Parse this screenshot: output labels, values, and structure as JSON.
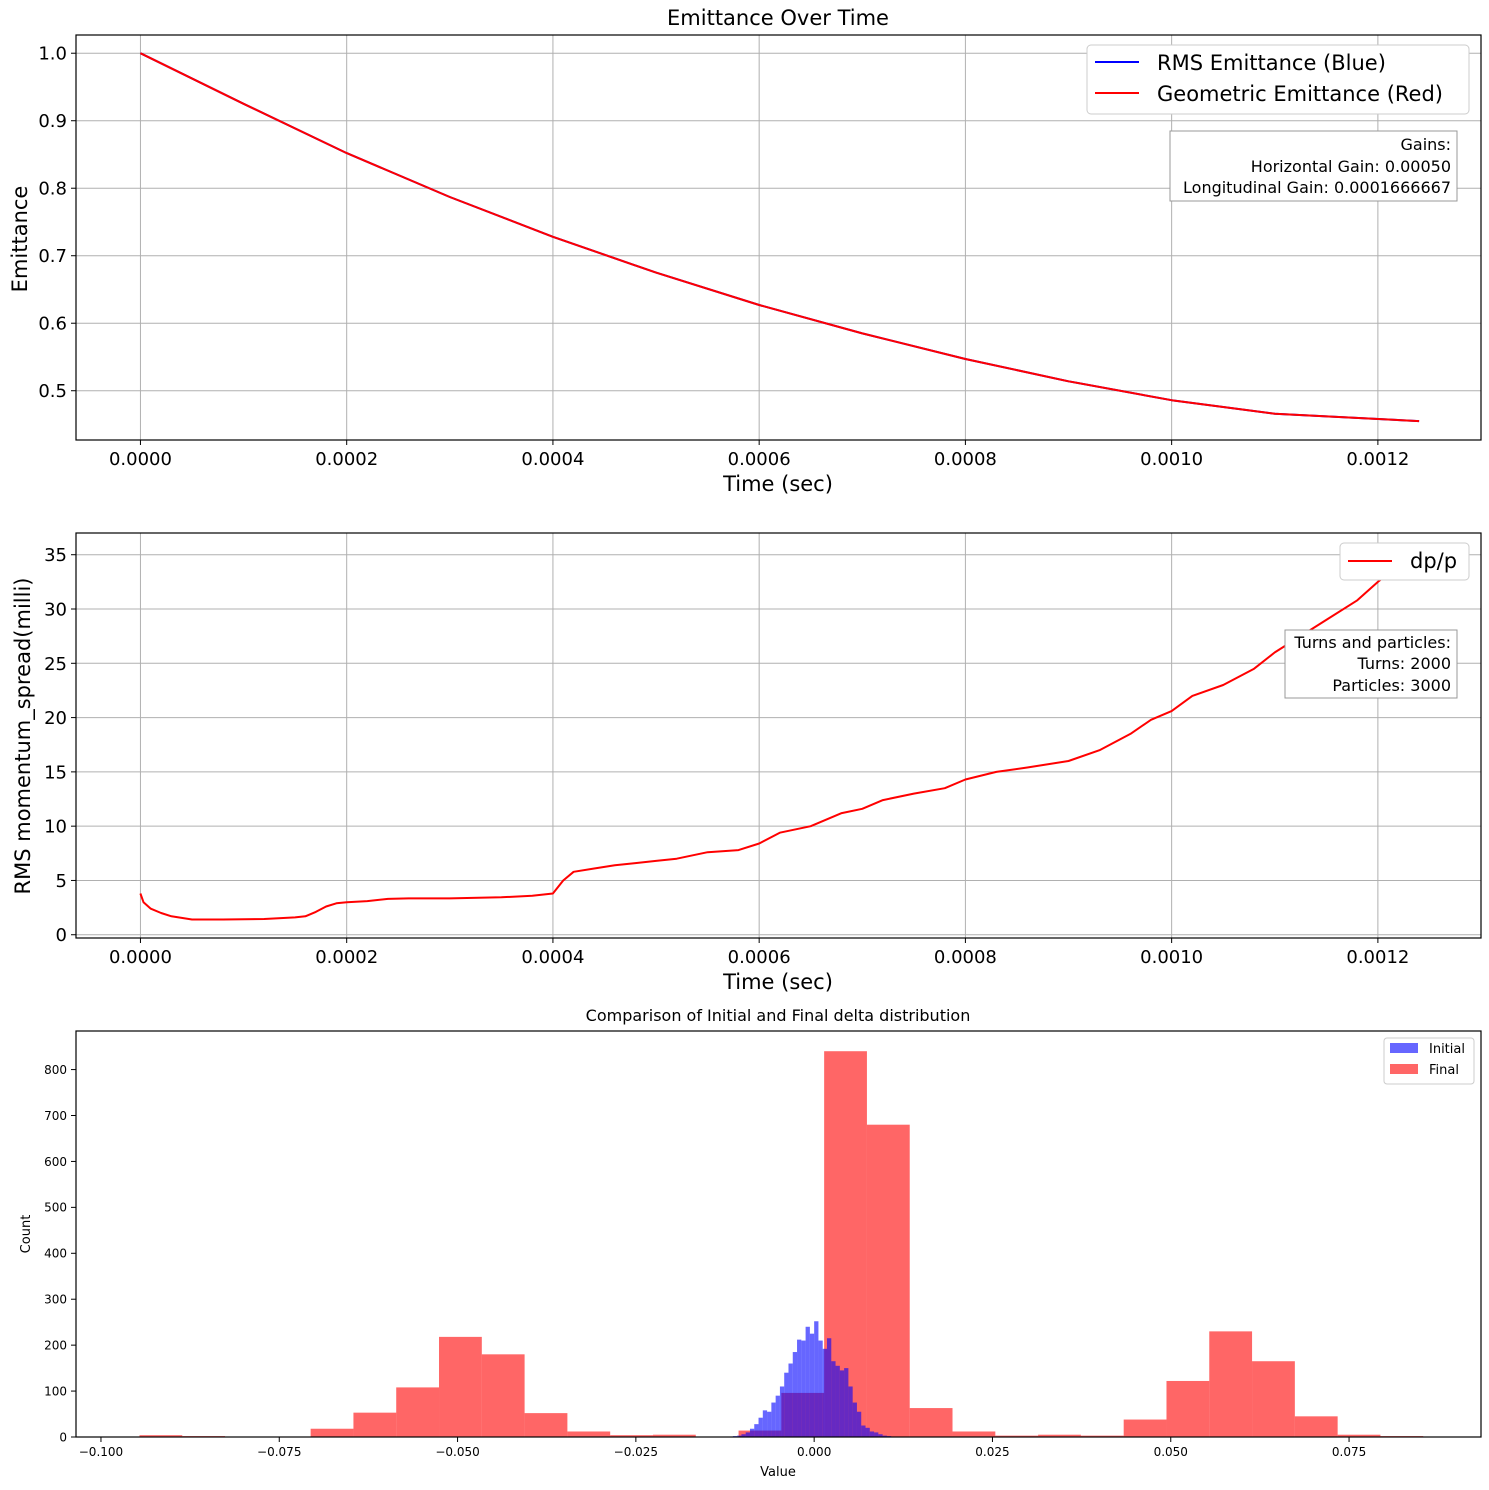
{
  "chart_data": [
    {
      "type": "line",
      "title": "Emittance Over Time",
      "xlabel": "Time (sec)",
      "ylabel": "Emittance",
      "xlim": [
        -6.25e-05,
        0.0013
      ],
      "ylim": [
        0.427,
        1.027
      ],
      "x_ticks": [
        "0.0000",
        "0.0002",
        "0.0004",
        "0.0006",
        "0.0008",
        "0.0010",
        "0.0012"
      ],
      "x_tick_values": [
        0,
        0.0002,
        0.0004,
        0.0006,
        0.0008,
        0.001,
        0.0012
      ],
      "y_ticks": [
        "0.5",
        "0.6",
        "0.7",
        "0.8",
        "0.9",
        "1.0"
      ],
      "y_tick_values": [
        0.5,
        0.6,
        0.7,
        0.8,
        0.9,
        1.0
      ],
      "grid": true,
      "legend": "top-right",
      "series": [
        {
          "name": "RMS Emittance (Blue)",
          "color": "#0000ff",
          "x": [
            0,
            0.0001,
            0.0002,
            0.0003,
            0.0004,
            0.0005,
            0.0006,
            0.0007,
            0.0008,
            0.0009,
            0.001,
            0.0011,
            0.00124
          ],
          "y": [
            1.0,
            0.925,
            0.852,
            0.787,
            0.728,
            0.675,
            0.627,
            0.585,
            0.547,
            0.514,
            0.486,
            0.466,
            0.455
          ]
        },
        {
          "name": "Geometric Emittance (Red)",
          "color": "#ff0000",
          "x": [
            0,
            0.0001,
            0.0002,
            0.0003,
            0.0004,
            0.0005,
            0.0006,
            0.0007,
            0.0008,
            0.0009,
            0.001,
            0.0011,
            0.00124
          ],
          "y": [
            1.0,
            0.925,
            0.852,
            0.787,
            0.728,
            0.675,
            0.627,
            0.585,
            0.547,
            0.514,
            0.486,
            0.466,
            0.455
          ]
        }
      ],
      "annotation": [
        "Gains:",
        "Horizontal Gain: 0.00050",
        "Longitudinal Gain: 0.0001666667"
      ]
    },
    {
      "type": "line",
      "xlabel": "Time (sec)",
      "ylabel": "RMS momentum_spread(milli)",
      "xlim": [
        -6.25e-05,
        0.0013
      ],
      "ylim": [
        -0.3,
        37
      ],
      "x_ticks": [
        "0.0000",
        "0.0002",
        "0.0004",
        "0.0006",
        "0.0008",
        "0.0010",
        "0.0012"
      ],
      "x_tick_values": [
        0,
        0.0002,
        0.0004,
        0.0006,
        0.0008,
        0.001,
        0.0012
      ],
      "y_ticks": [
        "0",
        "5",
        "10",
        "15",
        "20",
        "25",
        "30",
        "35"
      ],
      "y_tick_values": [
        0,
        5,
        10,
        15,
        20,
        25,
        30,
        35
      ],
      "grid": true,
      "legend": "top-right",
      "series": [
        {
          "name": "dp/p",
          "color": "#ff0000",
          "x": [
            0,
            3e-06,
            1e-05,
            2e-05,
            3e-05,
            5e-05,
            8e-05,
            0.00012,
            0.00015,
            0.00016,
            0.00017,
            0.00018,
            0.00019,
            0.0002,
            0.00022,
            0.00024,
            0.00026,
            0.0003,
            0.00035,
            0.00038,
            0.0004,
            0.00041,
            0.00042,
            0.00044,
            0.00046,
            0.00048,
            0.0005,
            0.00052,
            0.00055,
            0.00058,
            0.0006,
            0.00062,
            0.00065,
            0.00068,
            0.0007,
            0.00072,
            0.00075,
            0.00078,
            0.0008,
            0.00083,
            0.00086,
            0.0009,
            0.00093,
            0.00096,
            0.00098,
            0.001,
            0.00102,
            0.00105,
            0.00108,
            0.0011,
            0.00112,
            0.00115,
            0.00118,
            0.0012,
            0.00122,
            0.00124
          ],
          "y": [
            3.8,
            3.0,
            2.4,
            2.0,
            1.7,
            1.4,
            1.4,
            1.45,
            1.6,
            1.7,
            2.1,
            2.6,
            2.9,
            3.0,
            3.1,
            3.3,
            3.35,
            3.35,
            3.45,
            3.6,
            3.8,
            5.0,
            5.8,
            6.1,
            6.4,
            6.6,
            6.8,
            7.0,
            7.6,
            7.8,
            8.4,
            9.4,
            10.0,
            11.2,
            11.6,
            12.4,
            13.0,
            13.5,
            14.3,
            15.0,
            15.4,
            16.0,
            17.0,
            18.5,
            19.8,
            20.6,
            22.0,
            23.0,
            24.5,
            26.0,
            27.2,
            29.0,
            30.8,
            32.5,
            34.0,
            35.2
          ]
        }
      ],
      "annotation": [
        "Turns and particles:",
        "Turns: 2000",
        "Particles: 3000"
      ]
    },
    {
      "type": "bar",
      "subtype": "histogram",
      "title": "Comparison of Initial and Final delta distribution",
      "xlabel": "Value",
      "ylabel": "Count",
      "xlim": [
        -0.1035,
        0.0935
      ],
      "ylim": [
        0,
        884
      ],
      "x_ticks": [
        "−0.100",
        "−0.075",
        "−0.050",
        "−0.025",
        "0.000",
        "0.025",
        "0.050",
        "0.075"
      ],
      "x_tick_values": [
        -0.1,
        -0.075,
        -0.05,
        -0.025,
        0,
        0.025,
        0.05,
        0.075
      ],
      "y_ticks": [
        "0",
        "100",
        "200",
        "300",
        "400",
        "500",
        "600",
        "700",
        "800"
      ],
      "y_tick_values": [
        0,
        100,
        200,
        300,
        400,
        500,
        600,
        700,
        800
      ],
      "grid": false,
      "legend": "top-right",
      "series": [
        {
          "name": "Initial",
          "color": "#0000ff",
          "alpha": 0.6,
          "bin_start": -0.0114,
          "bin_width": 0.0006,
          "counts": [
            2,
            3,
            6,
            10,
            18,
            28,
            42,
            58,
            55,
            75,
            90,
            110,
            140,
            160,
            185,
            212,
            210,
            240,
            225,
            252,
            210,
            192,
            215,
            165,
            155,
            145,
            150,
            110,
            75,
            55,
            25,
            20,
            12,
            10,
            6,
            3,
            2
          ]
        },
        {
          "name": "Final",
          "color": "#ff0000",
          "alpha": 0.6,
          "bin_start": -0.0946,
          "bin_width": 0.006,
          "counts": [
            4,
            2,
            1,
            1,
            18,
            53,
            108,
            218,
            180,
            52,
            12,
            4,
            5,
            1,
            14,
            96,
            840,
            680,
            63,
            12,
            3,
            5,
            3,
            38,
            122,
            230,
            165,
            45,
            5,
            2,
            1
          ]
        }
      ]
    }
  ]
}
